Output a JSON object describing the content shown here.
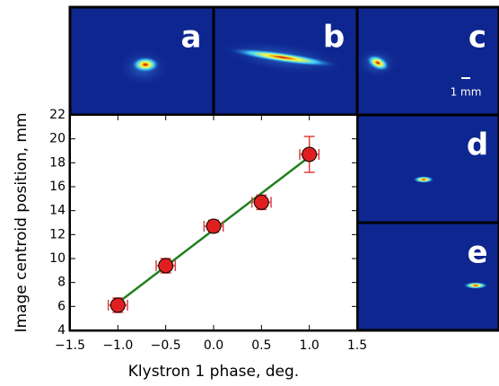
{
  "chart_data": {
    "type": "scatter",
    "xlabel": "Klystron 1 phase, deg.",
    "ylabel": "Image centroid position, mm",
    "xlim": [
      -1.5,
      1.5
    ],
    "xticks": [
      {
        "value": -1.5,
        "label": "−1.5"
      },
      {
        "value": -1.0,
        "label": "−1.0"
      },
      {
        "value": -0.5,
        "label": "−0.5"
      },
      {
        "value": 0.0,
        "label": "0.0"
      },
      {
        "value": 0.5,
        "label": "0.5"
      },
      {
        "value": 1.0,
        "label": "1.0"
      },
      {
        "value": 1.5,
        "label": "1.5"
      }
    ],
    "ylim": [
      4,
      22
    ],
    "yticks": [
      4,
      6,
      8,
      10,
      12,
      14,
      16,
      18,
      20,
      22
    ],
    "series": [
      {
        "color": "#e02020",
        "errcolor": "#e04040",
        "x": [
          -1.0,
          -0.5,
          0.0,
          0.5,
          1.0
        ],
        "values": [
          6.1,
          9.4,
          12.7,
          14.7,
          18.7
        ],
        "yerr": [
          0.6,
          0.6,
          0.5,
          0.6,
          1.5
        ],
        "xerr": [
          0.1,
          0.1,
          0.1,
          0.1,
          0.1
        ]
      }
    ],
    "fit": {
      "color": "#208020",
      "x": [
        -1.0,
        1.0
      ],
      "values": [
        6.3,
        18.5
      ]
    },
    "panels": {
      "a": "a",
      "b": "b",
      "c": "c",
      "d": "d",
      "e": "e",
      "scale": "1 mm"
    }
  }
}
